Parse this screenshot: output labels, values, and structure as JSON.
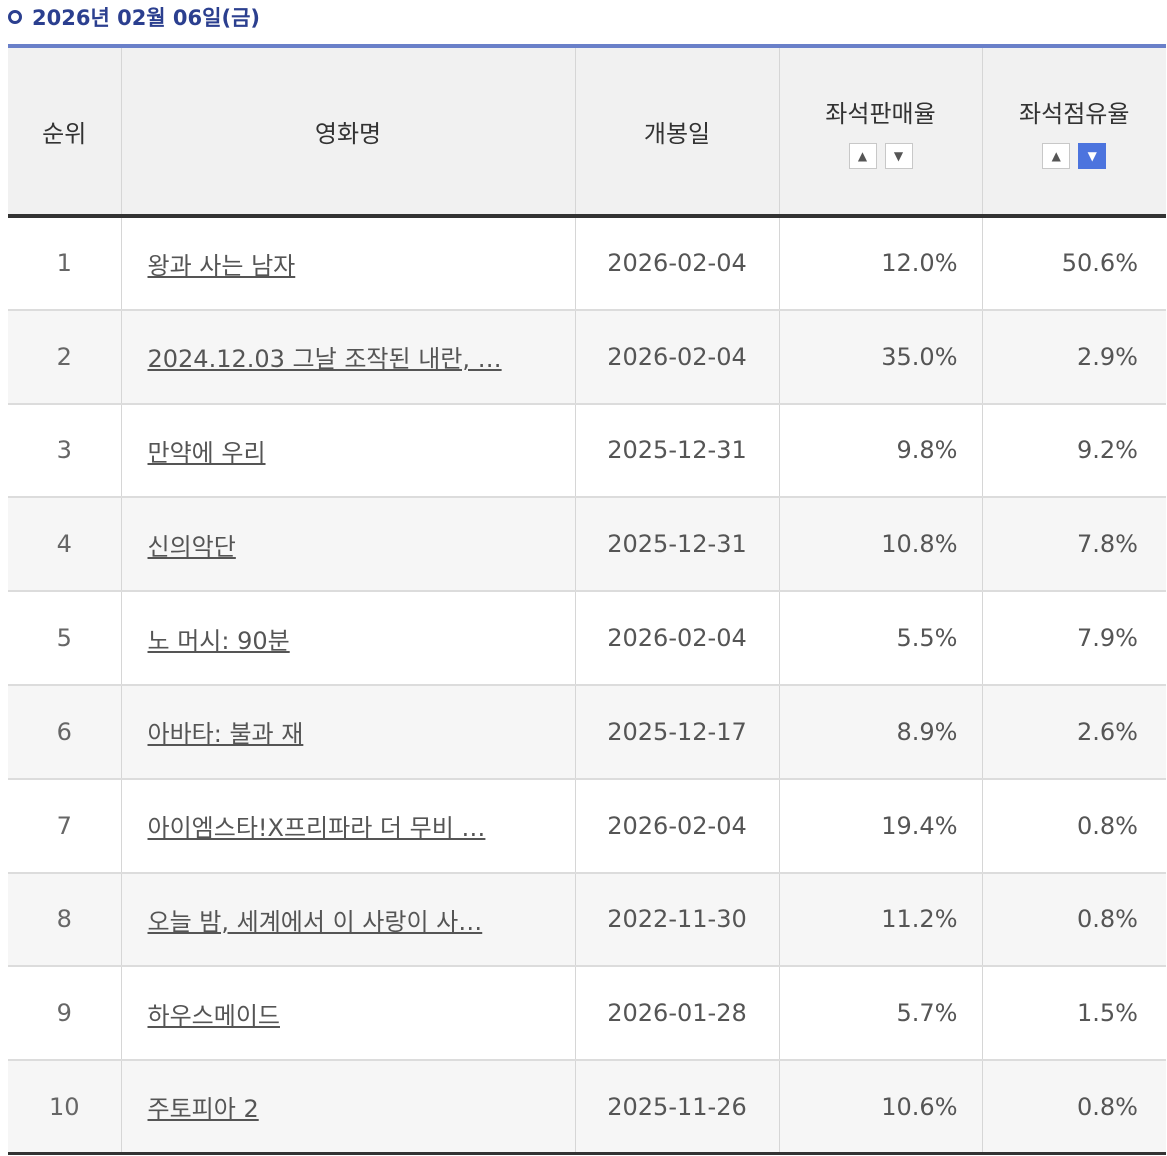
{
  "title": "2026년 02월 06일(금)",
  "headers": {
    "rank": "순위",
    "movie": "영화명",
    "open_date": "개봉일",
    "seat_sales": "좌석판매율",
    "seat_share": "좌석점유율"
  },
  "sort_icons": {
    "up": "chevron-up-icon",
    "down": "chevron-down-icon"
  },
  "rows": [
    {
      "rank": "1",
      "movie": "왕과 사는 남자",
      "date": "2026-02-04",
      "sales": "12.0%",
      "share": "50.6%"
    },
    {
      "rank": "2",
      "movie": "2024.12.03 그날 조작된 내란, …",
      "date": "2026-02-04",
      "sales": "35.0%",
      "share": "2.9%"
    },
    {
      "rank": "3",
      "movie": "만약에 우리",
      "date": "2025-12-31",
      "sales": "9.8%",
      "share": "9.2%"
    },
    {
      "rank": "4",
      "movie": "신의악단",
      "date": "2025-12-31",
      "sales": "10.8%",
      "share": "7.8%"
    },
    {
      "rank": "5",
      "movie": "노 머시: 90분",
      "date": "2026-02-04",
      "sales": "5.5%",
      "share": "7.9%"
    },
    {
      "rank": "6",
      "movie": "아바타: 불과 재",
      "date": "2025-12-17",
      "sales": "8.9%",
      "share": "2.6%"
    },
    {
      "rank": "7",
      "movie": "아이엠스타!X프리파라 더 무비 …",
      "date": "2026-02-04",
      "sales": "19.4%",
      "share": "0.8%"
    },
    {
      "rank": "8",
      "movie": "오늘 밤, 세계에서 이 사랑이 사…",
      "date": "2022-11-30",
      "sales": "11.2%",
      "share": "0.8%"
    },
    {
      "rank": "9",
      "movie": "하우스메이드",
      "date": "2026-01-28",
      "sales": "5.7%",
      "share": "1.5%"
    },
    {
      "rank": "10",
      "movie": "주토피아 2",
      "date": "2025-11-26",
      "sales": "10.6%",
      "share": "0.8%"
    }
  ],
  "colors": {
    "accent": "#2b3f8f",
    "sort_active": "#4c74de"
  }
}
